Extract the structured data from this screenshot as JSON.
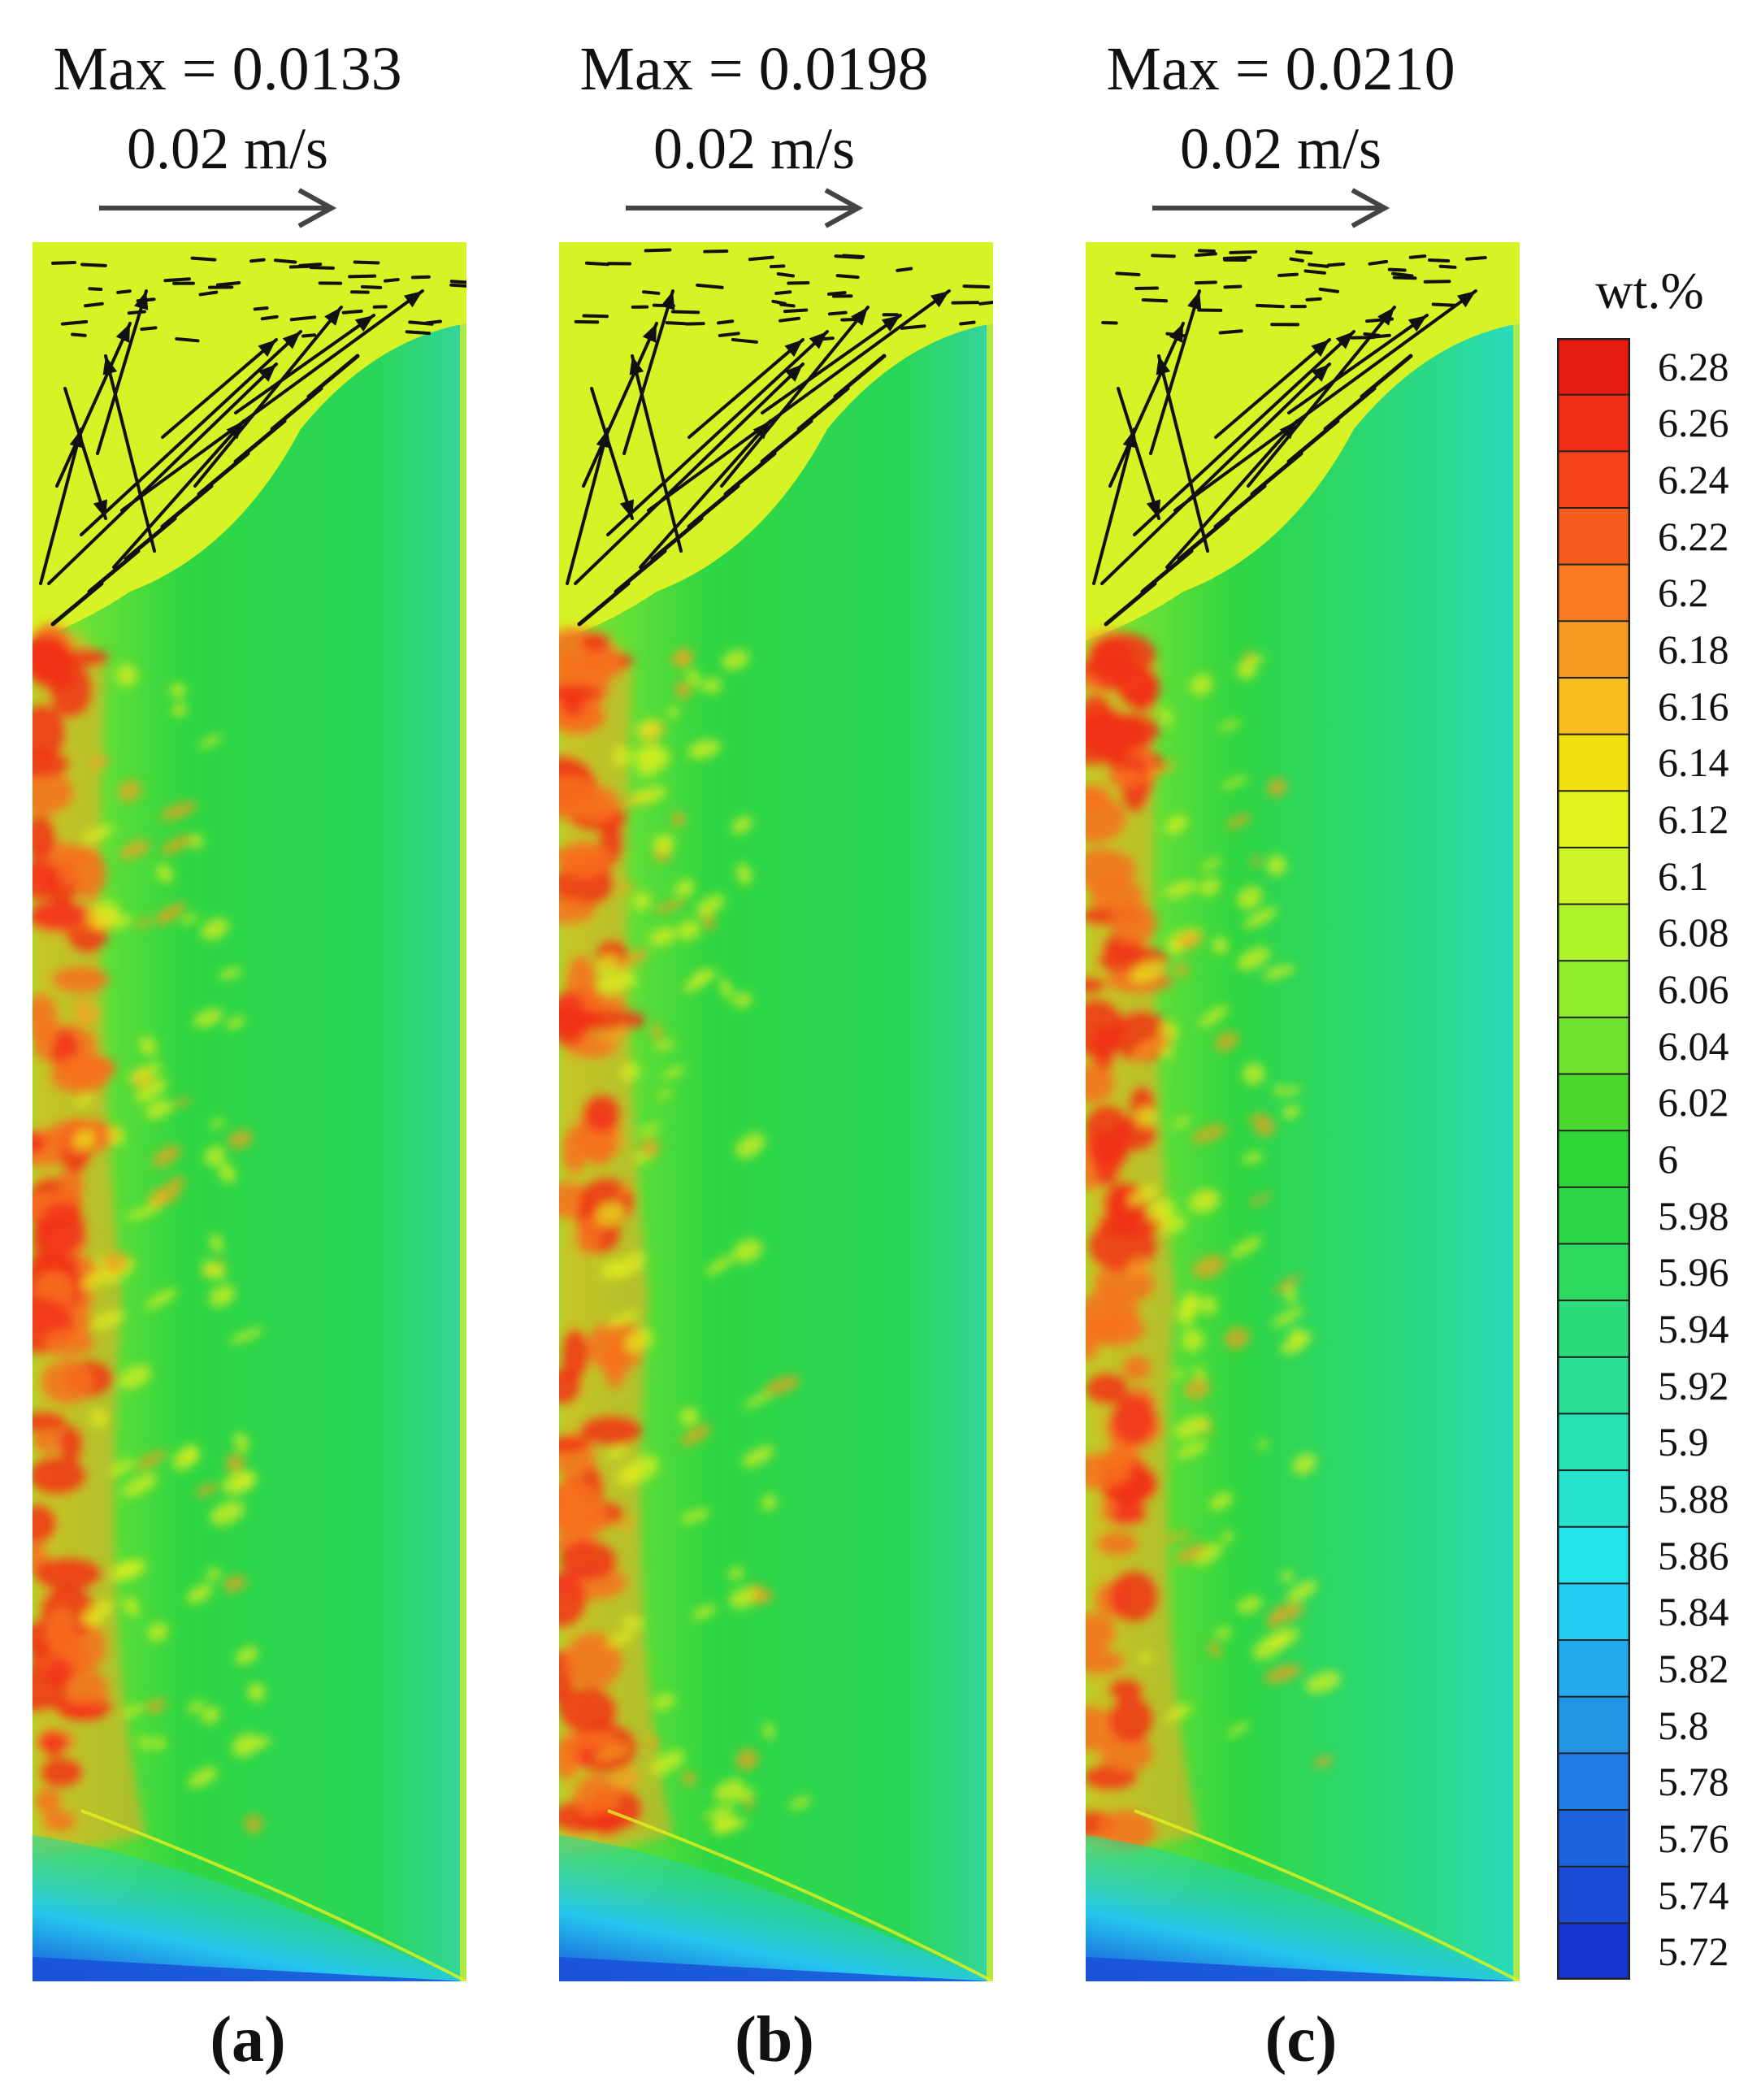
{
  "panels": [
    {
      "id": "a",
      "max_label": "Max = 0.0133",
      "scale_label": "0.02 m/s",
      "panel_label": "(a)"
    },
    {
      "id": "b",
      "max_label": "Max = 0.0198",
      "scale_label": "0.02 m/s",
      "panel_label": "(b)"
    },
    {
      "id": "c",
      "max_label": "Max = 0.0210",
      "scale_label": "0.02 m/s",
      "panel_label": "(c)"
    }
  ],
  "legend": {
    "title": "wt.%",
    "ticks": [
      "6.28",
      "6.26",
      "6.24",
      "6.22",
      "6.2",
      "6.18",
      "6.16",
      "6.14",
      "6.12",
      "6.1",
      "6.08",
      "6.06",
      "6.04",
      "6.02",
      "6",
      "5.98",
      "5.96",
      "5.94",
      "5.92",
      "5.9",
      "5.88",
      "5.86",
      "5.84",
      "5.82",
      "5.8",
      "5.78",
      "5.76",
      "5.74",
      "5.72"
    ],
    "colors": [
      "#e81b10",
      "#f02c12",
      "#f5421a",
      "#f85c1c",
      "#f97a1f",
      "#f99b22",
      "#f8bd1f",
      "#f2df10",
      "#e2f21a",
      "#cdf52a",
      "#aef22a",
      "#8eec2a",
      "#6ee22e",
      "#4cd92e",
      "#2ed638",
      "#2ed84a",
      "#2cda60",
      "#2add7a",
      "#28df96",
      "#26e2b3",
      "#25e3cf",
      "#22e4ea",
      "#22ccf2",
      "#22acee",
      "#2294e6",
      "#1f7ce4",
      "#1b64de",
      "#1a4cd8",
      "#1434d0"
    ]
  },
  "field_colors": {
    "top_pool": "#d7f225",
    "bulk": "#2fd643",
    "right_side": "#27dcc0",
    "segregation": "#f2321a",
    "mid_orange": "#f9a81f",
    "yellow": "#e4f01e",
    "bottom_blue": "#1a50d8",
    "vector": "#111111"
  }
}
